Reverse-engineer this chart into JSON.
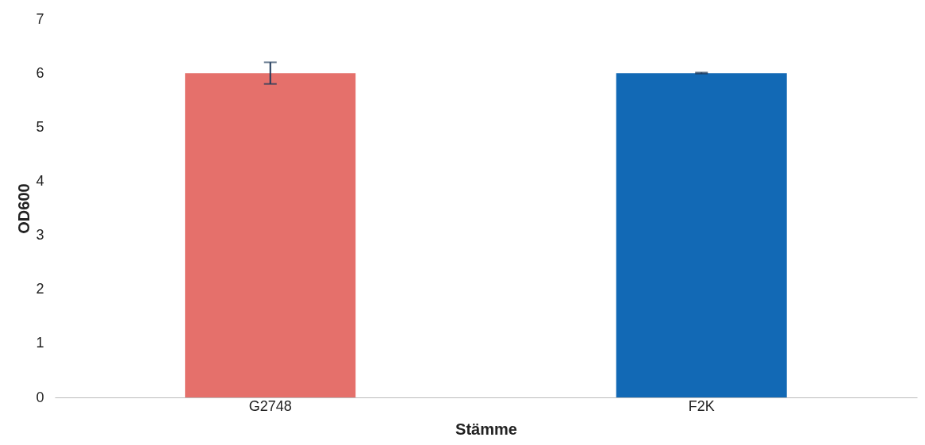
{
  "chart_data": {
    "type": "bar",
    "xlabel": "Stämme",
    "ylabel": "OD600",
    "categories": [
      "G2748",
      "F2K"
    ],
    "values": [
      6.0,
      6.0
    ],
    "colors": [
      "#e5706b",
      "#1269b5"
    ],
    "errors": [
      0.2,
      0.01
    ],
    "ylim": [
      0,
      7
    ],
    "yticks": [
      0,
      1,
      2,
      3,
      4,
      5,
      6,
      7
    ],
    "grid": false
  }
}
